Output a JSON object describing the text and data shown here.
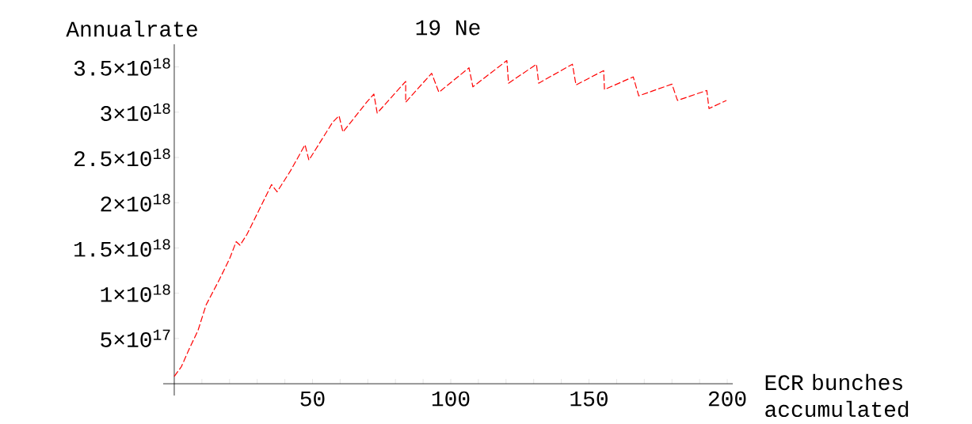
{
  "chart_data": {
    "type": "line",
    "title": "19 Ne",
    "ylabel": "Annualrate",
    "xlabel": "ECR bunches accumulated",
    "x": [
      0,
      2.6,
      5.2,
      8.6,
      11.5,
      16.3,
      20,
      22.4,
      23.8,
      26.3,
      31,
      35.2,
      37.2,
      42,
      47.3,
      48.7,
      57.3,
      59.6,
      61,
      69.6,
      72.2,
      73.4,
      83.7,
      83.7,
      93.1,
      95.7,
      106.6,
      108,
      120.3,
      120.9,
      131,
      131.8,
      144,
      145.3,
      155.3,
      155.6,
      166,
      168,
      180,
      182,
      192.6,
      193.4,
      199.7
    ],
    "series": [
      {
        "color": "#ff0000",
        "line_style": "dashed",
        "values": [
          8e+16,
          1.9e+17,
          3.7e+17,
          5.9e+17,
          8.7e+17,
          1.15e+18,
          1.38e+18,
          1.57e+18,
          1.53e+18,
          1.65e+18,
          1.94e+18,
          2.2e+18,
          2.12e+18,
          2.35e+18,
          2.64e+18,
          2.47e+18,
          2.89e+18,
          2.96e+18,
          2.78e+18,
          3.11e+18,
          3.2e+18,
          2.99e+18,
          3.34e+18,
          3.11e+18,
          3.43e+18,
          3.22e+18,
          3.49e+18,
          3.28e+18,
          3.57e+18,
          3.32e+18,
          3.53e+18,
          3.32e+18,
          3.53e+18,
          3.3e+18,
          3.46e+18,
          3.25e+18,
          3.39e+18,
          3.18e+18,
          3.31e+18,
          3.13e+18,
          3.24e+18,
          3.04e+18,
          3.13e+18
        ]
      }
    ],
    "xlim": [
      -4,
      202
    ],
    "ylim": [
      -1.3e+17,
      3.75e+18
    ],
    "xticks": [
      {
        "value": 10,
        "label": null
      },
      {
        "value": 20,
        "label": null
      },
      {
        "value": 30,
        "label": null
      },
      {
        "value": 40,
        "label": null
      },
      50,
      {
        "value": 60,
        "label": null
      },
      {
        "value": 70,
        "label": null
      },
      {
        "value": 80,
        "label": null
      },
      {
        "value": 90,
        "label": null
      },
      100,
      {
        "value": 110,
        "label": null
      },
      {
        "value": 120,
        "label": null
      },
      {
        "value": 130,
        "label": null
      },
      {
        "value": 140,
        "label": null
      },
      150,
      {
        "value": 160,
        "label": null
      },
      {
        "value": 170,
        "label": null
      },
      {
        "value": 180,
        "label": null
      },
      {
        "value": 190,
        "label": null
      },
      200
    ],
    "yticks": [
      {
        "value": 5e+17,
        "label": "5×10$^{17}$"
      },
      {
        "value": 1e+18,
        "label": "1×10$^{18}$"
      },
      {
        "value": 1.5e+18,
        "label": "1.5×10$^{18}$"
      },
      {
        "value": 2e+18,
        "label": "2×10$^{18}$"
      },
      {
        "value": 2.5e+18,
        "label": "2.5×10$^{18}$"
      },
      {
        "value": 3e+18,
        "label": "3×10$^{18}$"
      },
      {
        "value": 3.5e+18,
        "label": "3.5×10$^{18}$"
      }
    ],
    "grid": false
  }
}
